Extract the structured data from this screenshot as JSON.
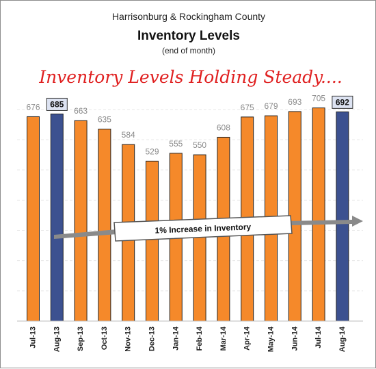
{
  "header": {
    "subtitle": "Harrisonburg & Rockingham County",
    "title": "Inventory Levels",
    "note": "(end of month)",
    "headline": "Inventory Levels Holding Steady...."
  },
  "annotation": {
    "arrow_label": "1% Increase in Inventory"
  },
  "colors": {
    "normal_bar": "#f5892a",
    "highlight_bar": "#3c5190",
    "highlight_label_bg": "#dde3f2",
    "headline": "#e02020"
  },
  "chart_data": {
    "type": "bar",
    "categories": [
      "Jul-13",
      "Aug-13",
      "Sep-13",
      "Oct-13",
      "Nov-13",
      "Dec-13",
      "Jan-14",
      "Feb-14",
      "Mar-14",
      "Apr-14",
      "May-14",
      "Jun-14",
      "Jul-14",
      "Aug-14"
    ],
    "values": [
      676,
      685,
      663,
      635,
      584,
      529,
      555,
      550,
      608,
      675,
      679,
      693,
      705,
      692
    ],
    "highlighted": [
      "Aug-13",
      "Aug-14"
    ],
    "title": "Inventory Levels",
    "xlabel": "",
    "ylabel": "",
    "ylim": [
      0,
      720
    ],
    "grid": true,
    "legend": "none"
  }
}
